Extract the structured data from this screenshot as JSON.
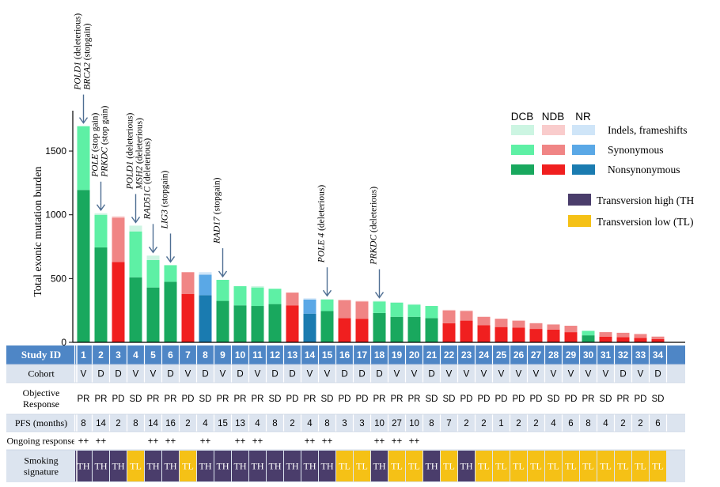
{
  "chart_data": {
    "type": "bar",
    "ylabel": "Total exonic mutation burden",
    "ylim": [
      0,
      1800
    ],
    "yticks": [
      0,
      500,
      1000,
      1500
    ],
    "patients": [
      {
        "id": "1",
        "group": "DCB",
        "non": 1195,
        "syn": 500,
        "ind": 0
      },
      {
        "id": "2",
        "group": "DCB",
        "non": 745,
        "syn": 255,
        "ind": 12
      },
      {
        "id": "3",
        "group": "NDB",
        "non": 630,
        "syn": 348,
        "ind": 10
      },
      {
        "id": "4",
        "group": "DCB",
        "non": 510,
        "syn": 360,
        "ind": 45
      },
      {
        "id": "5",
        "group": "DCB",
        "non": 430,
        "syn": 215,
        "ind": 35
      },
      {
        "id": "6",
        "group": "DCB",
        "non": 475,
        "syn": 130,
        "ind": 0
      },
      {
        "id": "7",
        "group": "NDB",
        "non": 380,
        "syn": 170,
        "ind": 0
      },
      {
        "id": "8",
        "group": "NR",
        "non": 370,
        "syn": 160,
        "ind": 20
      },
      {
        "id": "9",
        "group": "DCB",
        "non": 325,
        "syn": 165,
        "ind": 0
      },
      {
        "id": "10",
        "group": "DCB",
        "non": 290,
        "syn": 150,
        "ind": 0
      },
      {
        "id": "11",
        "group": "DCB",
        "non": 285,
        "syn": 145,
        "ind": 10
      },
      {
        "id": "12",
        "group": "DCB",
        "non": 300,
        "syn": 120,
        "ind": 0
      },
      {
        "id": "13",
        "group": "NDB",
        "non": 290,
        "syn": 100,
        "ind": 0
      },
      {
        "id": "14",
        "group": "NR",
        "non": 225,
        "syn": 110,
        "ind": 10
      },
      {
        "id": "15",
        "group": "DCB",
        "non": 245,
        "syn": 90,
        "ind": 5
      },
      {
        "id": "16",
        "group": "NDB",
        "non": 190,
        "syn": 140,
        "ind": 5
      },
      {
        "id": "17",
        "group": "NDB",
        "non": 185,
        "syn": 135,
        "ind": 5
      },
      {
        "id": "18",
        "group": "DCB",
        "non": 230,
        "syn": 90,
        "ind": 5
      },
      {
        "id": "19",
        "group": "DCB",
        "non": 200,
        "syn": 110,
        "ind": 5
      },
      {
        "id": "20",
        "group": "DCB",
        "non": 200,
        "syn": 95,
        "ind": 5
      },
      {
        "id": "21",
        "group": "DCB",
        "non": 190,
        "syn": 95,
        "ind": 0
      },
      {
        "id": "22",
        "group": "NDB",
        "non": 150,
        "syn": 100,
        "ind": 5
      },
      {
        "id": "23",
        "group": "NDB",
        "non": 170,
        "syn": 75,
        "ind": 5
      },
      {
        "id": "24",
        "group": "NDB",
        "non": 135,
        "syn": 65,
        "ind": 0
      },
      {
        "id": "25",
        "group": "NDB",
        "non": 120,
        "syn": 65,
        "ind": 0
      },
      {
        "id": "26",
        "group": "NDB",
        "non": 115,
        "syn": 55,
        "ind": 0
      },
      {
        "id": "27",
        "group": "NDB",
        "non": 105,
        "syn": 45,
        "ind": 0
      },
      {
        "id": "28",
        "group": "NDB",
        "non": 100,
        "syn": 40,
        "ind": 0
      },
      {
        "id": "29",
        "group": "NDB",
        "non": 80,
        "syn": 50,
        "ind": 0
      },
      {
        "id": "30",
        "group": "DCB",
        "non": 55,
        "syn": 35,
        "ind": 0
      },
      {
        "id": "31",
        "group": "NDB",
        "non": 45,
        "syn": 35,
        "ind": 0
      },
      {
        "id": "32",
        "group": "NDB",
        "non": 40,
        "syn": 35,
        "ind": 0
      },
      {
        "id": "33",
        "group": "NDB",
        "non": 35,
        "syn": 30,
        "ind": 0
      },
      {
        "id": "34",
        "group": "NDB",
        "non": 25,
        "syn": 20,
        "ind": 0
      }
    ],
    "annotations": [
      {
        "bar": 1,
        "label_italic": "POLD1",
        "label_rest": " (deleterious)",
        "tier": 0
      },
      {
        "bar": 1,
        "label_italic": "BRCA2",
        "label_rest": "  (stopgain)",
        "tier": 1
      },
      {
        "bar": 2,
        "label_italic": "POLE",
        "label_rest": " (stop gain)",
        "tier": 0
      },
      {
        "bar": 2,
        "label_italic": "PRKDC",
        "label_rest": " (stop gain)",
        "tier": 1
      },
      {
        "bar": 4,
        "label_italic": "POLD1",
        "label_rest": " (deleterious)",
        "tier": 0
      },
      {
        "bar": 4,
        "label_italic": "MSH2",
        "label_rest": " (deleterious)",
        "tier": 1
      },
      {
        "bar": 5,
        "label_italic": "RAD51C",
        "label_rest": " (deleterious)",
        "tier": 0
      },
      {
        "bar": 6,
        "label_italic": "LIG3",
        "label_rest": " (stopgain)",
        "tier": 0
      },
      {
        "bar": 9,
        "label_italic": "RAD17",
        "label_rest": " (stopgain)",
        "tier": 0
      },
      {
        "bar": 15,
        "label_italic": "POLE 4",
        "label_rest": " (deleterious)",
        "tier": 0
      },
      {
        "bar": 18,
        "label_italic": "PRKDC",
        "label_rest": "  (deleterious)",
        "tier": 0
      }
    ],
    "legend": {
      "headers": [
        "DCB",
        "NDB",
        "NR"
      ],
      "rows": [
        "Indels, frameshifts",
        "Synonymous",
        "Nonsynonymous"
      ],
      "signature": [
        "Transversion high (TH",
        "Transversion low (TL)"
      ]
    },
    "colors": {
      "DCB": [
        "#19a85e",
        "#5ef0a5",
        "#ccf5e2"
      ],
      "NDB": [
        "#f01f1f",
        "#f08585",
        "#f9cccc"
      ],
      "NR": [
        "#1a7bb0",
        "#5aa8e6",
        "#cfe5f8"
      ],
      "TH": "#4a3d6b",
      "TL": "#f5c116",
      "header": "#4e86c6",
      "row_alt": "#dce4ef",
      "arrow": "#4f6f93"
    },
    "table": {
      "rows": [
        {
          "key": "study",
          "label": "Study ID",
          "bold": true,
          "header": true,
          "values": [
            "1",
            "2",
            "3",
            "4",
            "5",
            "6",
            "7",
            "8",
            "9",
            "10",
            "11",
            "12",
            "13",
            "14",
            "15",
            "16",
            "17",
            "18",
            "19",
            "20",
            "21",
            "22",
            "23",
            "24",
            "25",
            "26",
            "27",
            "28",
            "29",
            "30",
            "31",
            "32",
            "33",
            "34"
          ]
        },
        {
          "key": "cohort",
          "label": "Cohort",
          "values": [
            "V",
            "D",
            "D",
            "V",
            "V",
            "D",
            "V",
            "D",
            "V",
            "D",
            "V",
            "D",
            "D",
            "V",
            "V",
            "D",
            "D",
            "D",
            "V",
            "V",
            "D",
            "V",
            "V",
            "V",
            "V",
            "V",
            "V",
            "V",
            "V",
            "V",
            "V",
            "D",
            "V",
            "D"
          ]
        },
        {
          "key": "response",
          "label": "Objective Response",
          "values": [
            "PR",
            "PR",
            "PD",
            "SD",
            "PR",
            "PR",
            "PD",
            "SD",
            "PR",
            "PR",
            "PR",
            "SD",
            "PD",
            "PR",
            "SD",
            "PD",
            "PD",
            "PR",
            "PR",
            "PR",
            "SD",
            "SD",
            "PD",
            "PD",
            "PD",
            "PD",
            "PD",
            "SD",
            "PD",
            "PR",
            "SD",
            "PR",
            "PD",
            "SD"
          ]
        },
        {
          "key": "pfs",
          "label": "PFS (months)",
          "values": [
            "8",
            "14",
            "2",
            "8",
            "14",
            "16",
            "2",
            "4",
            "15",
            "13",
            "4",
            "8",
            "2",
            "4",
            "8",
            "3",
            "3",
            "10",
            "27",
            "10",
            "8",
            "7",
            "2",
            "2",
            "1",
            "2",
            "2",
            "4",
            "6",
            "8",
            "4",
            "2",
            "2",
            "6"
          ]
        },
        {
          "key": "ongoing",
          "label": "Ongoing response",
          "values": [
            "++",
            "++",
            "",
            "",
            "++",
            "++",
            "",
            "++",
            "",
            "++",
            "++",
            "",
            "",
            "++",
            "++",
            "",
            "",
            "++",
            "++",
            "++",
            "",
            "",
            "",
            "",
            "",
            "",
            "",
            "",
            "",
            "",
            "",
            "",
            "",
            ""
          ]
        },
        {
          "key": "signature",
          "label": "Smoking signature",
          "values": [
            "TH",
            "TH",
            "TH",
            "TL",
            "TH",
            "TH",
            "TL",
            "TH",
            "TH",
            "TH",
            "TH",
            "TH",
            "TH",
            "TH",
            "TH",
            "TL",
            "TL",
            "TH",
            "TL",
            "TL",
            "TH",
            "TL",
            "TH",
            "TL",
            "TL",
            "TL",
            "TL",
            "TL",
            "TL",
            "TL",
            "TL",
            "TL",
            "TL",
            "TL"
          ]
        }
      ]
    }
  }
}
